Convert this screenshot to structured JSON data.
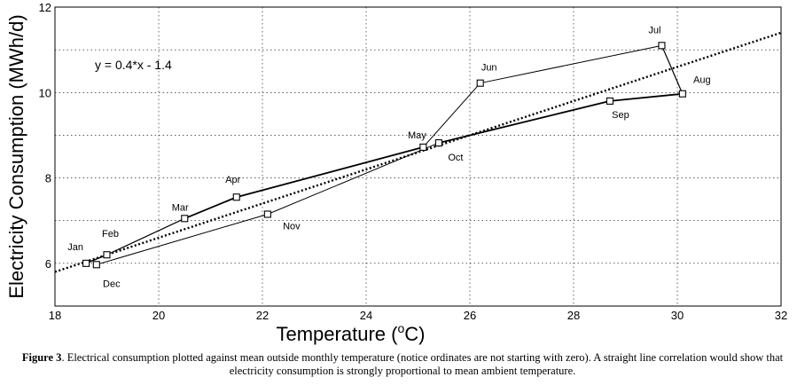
{
  "chart_data": {
    "type": "line",
    "xlabel": "Temperature (",
    "xlabel_sup": "o",
    "xlabel_end": "C)",
    "ylabel": "Electricity Consumption (MWh/d)",
    "xlim": [
      18,
      32
    ],
    "ylim": [
      5,
      12
    ],
    "x_ticks": [
      18,
      20,
      22,
      24,
      26,
      28,
      30,
      32
    ],
    "y_ticks": [
      6,
      8,
      10,
      12
    ],
    "grid": true,
    "grid_style": "dashed",
    "annotation": "y = 0.4*x - 1.4",
    "trendline": {
      "slope": 0.4,
      "intercept": -1.4,
      "style": "dotted"
    },
    "series": [
      {
        "points": [
          {
            "label": "Jan",
            "x": 18.6,
            "y": 6.0
          },
          {
            "label": "Feb",
            "x": 19.0,
            "y": 6.2
          },
          {
            "label": "Mar",
            "x": 20.5,
            "y": 7.05
          },
          {
            "label": "Apr",
            "x": 21.5,
            "y": 7.55
          },
          {
            "label": "May",
            "x": 25.1,
            "y": 8.72
          },
          {
            "label": "Jun",
            "x": 26.2,
            "y": 10.22
          },
          {
            "label": "Jul",
            "x": 29.7,
            "y": 11.1
          },
          {
            "label": "Aug",
            "x": 30.1,
            "y": 9.97
          },
          {
            "label": "Sep",
            "x": 28.7,
            "y": 9.8
          },
          {
            "label": "Oct",
            "x": 25.4,
            "y": 8.82
          },
          {
            "label": "Nov",
            "x": 22.1,
            "y": 7.15
          },
          {
            "label": "Dec",
            "x": 18.8,
            "y": 5.97
          }
        ]
      }
    ]
  },
  "caption": {
    "label": "Figure 3",
    "text": ". Electrical consumption plotted against mean outside monthly temperature (notice ordinates are not starting with zero). A straight line correlation would show that electricity consumption is strongly proportional to mean ambient temperature."
  }
}
